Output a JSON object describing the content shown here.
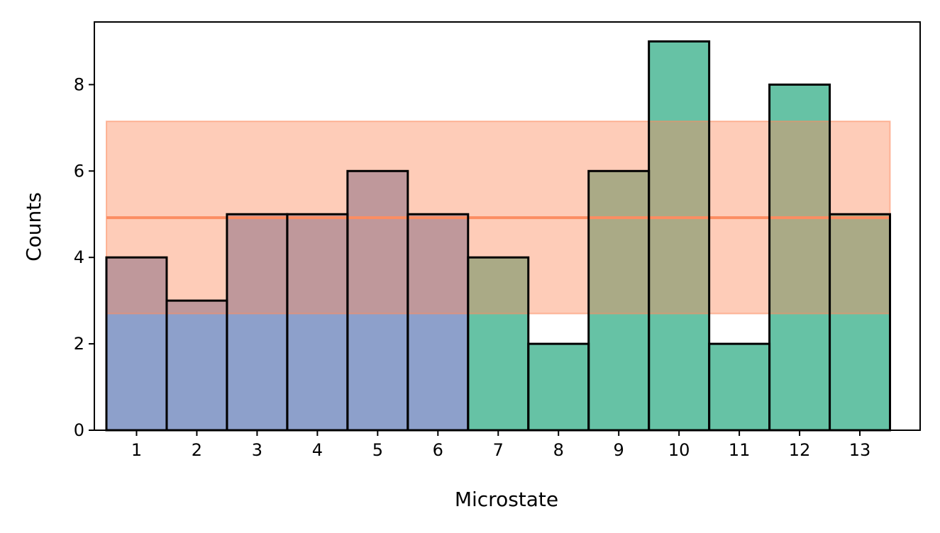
{
  "chart_data": {
    "type": "bar",
    "xlabel": "Microstate",
    "ylabel": "Counts",
    "categories": [
      "1",
      "2",
      "3",
      "4",
      "5",
      "6",
      "7",
      "8",
      "9",
      "10",
      "11",
      "12",
      "13"
    ],
    "values": [
      4,
      3,
      5,
      5,
      6,
      5,
      4,
      2,
      6,
      9,
      2,
      8,
      5
    ],
    "group_colors": {
      "group_1": "#8da0cb",
      "group_2": "#66c2a5"
    },
    "bar_groups": [
      1,
      1,
      1,
      1,
      1,
      1,
      2,
      2,
      2,
      2,
      2,
      2,
      2
    ],
    "reference_line": {
      "value": 4.92,
      "color": "#fc8d62"
    },
    "reference_band": {
      "low": 2.7,
      "high": 7.15,
      "color": "#fc8d62",
      "opacity": 0.45
    },
    "xlim": [
      0.3,
      14.0
    ],
    "ylim": [
      0,
      9.45
    ],
    "yticks": [
      "0",
      "2",
      "4",
      "6",
      "8"
    ],
    "ytick_values": [
      0,
      2,
      4,
      6,
      8
    ],
    "grid": false,
    "legend": false
  }
}
